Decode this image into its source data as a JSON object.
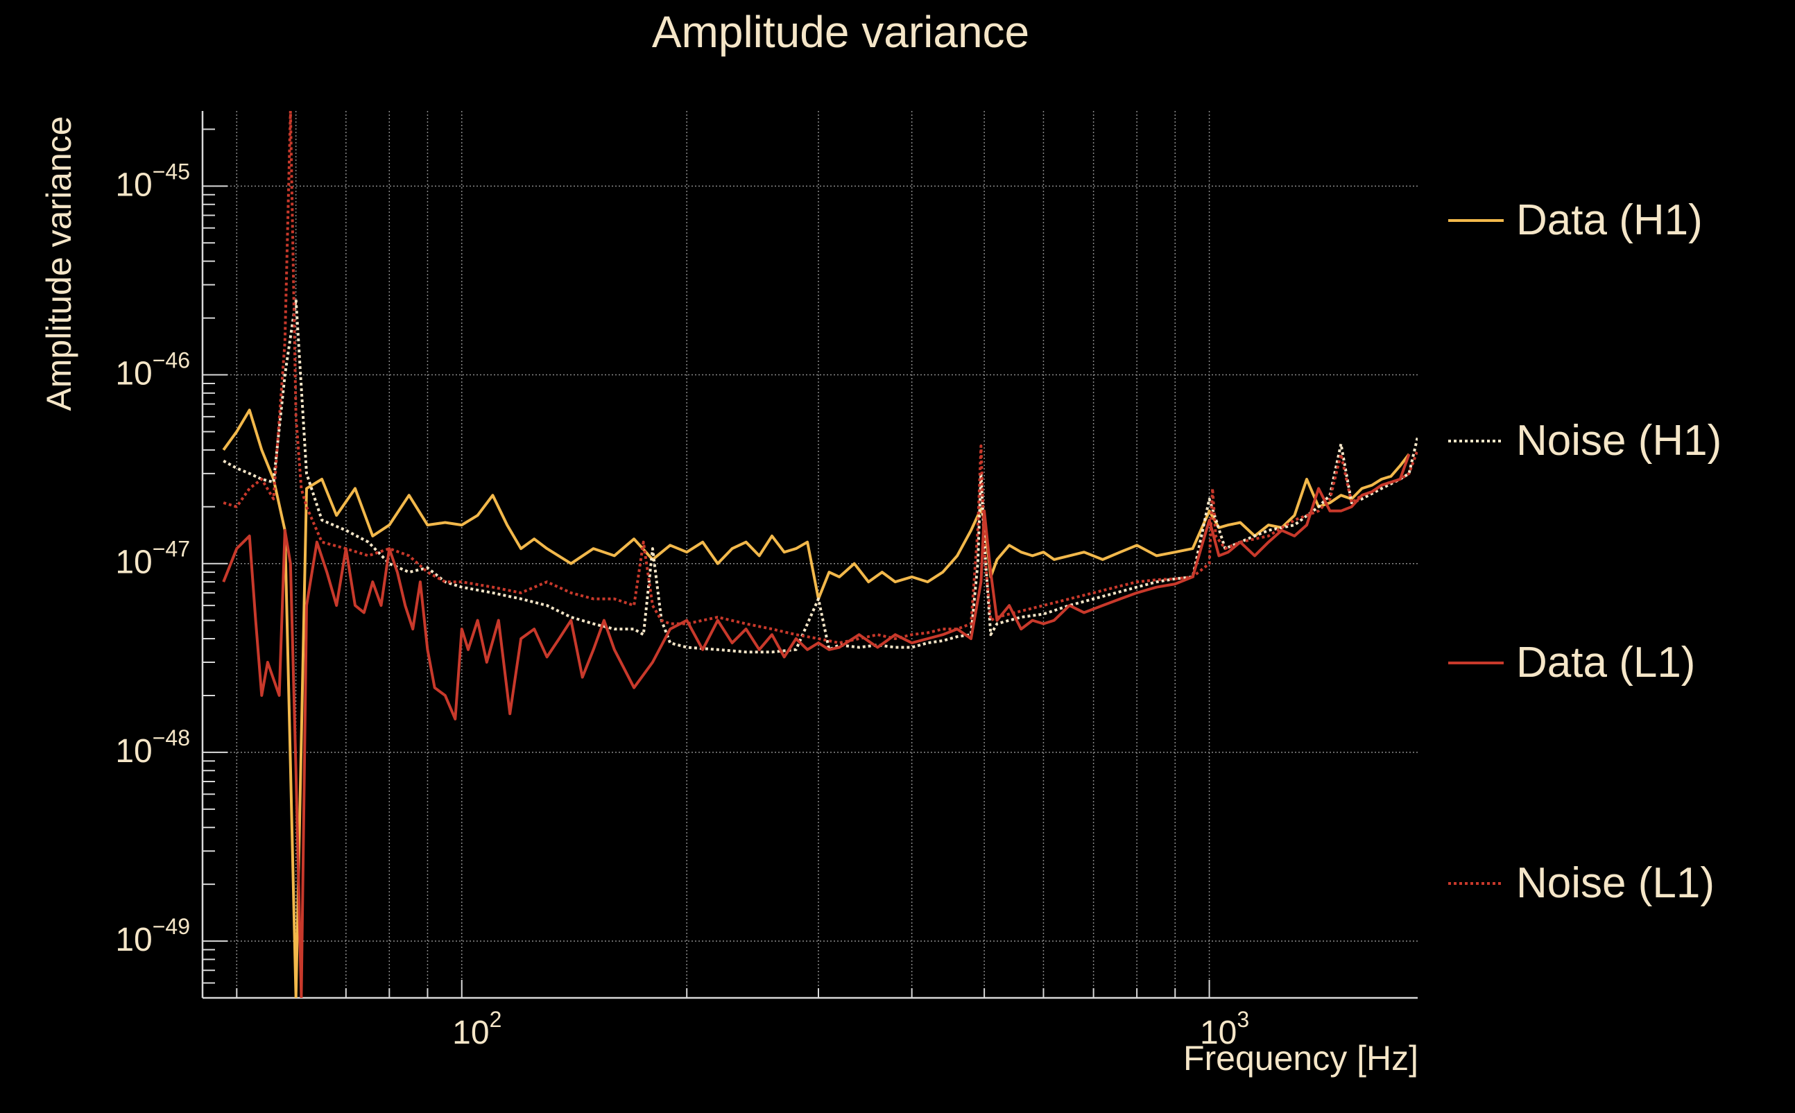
{
  "colors": {
    "background": "#000000",
    "text": "#f5e6c8",
    "axis": "#d9d9d9",
    "grid": "#8a8a8a",
    "h1": "#f2b84b",
    "l1": "#c8392b"
  },
  "chart_data": {
    "type": "line",
    "title": "Amplitude variance",
    "xlabel": "Frequency [Hz]",
    "ylabel": "Amplitude variance",
    "xscale": "log",
    "yscale": "log",
    "xlim": [
      45,
      1900
    ],
    "ylim": [
      5e-50,
      2.5e-45
    ],
    "grid": true,
    "legend_position": "right",
    "x_ticks": [
      {
        "value": 100,
        "base": "10",
        "exp": "2"
      },
      {
        "value": 1000,
        "base": "10",
        "exp": "3"
      }
    ],
    "y_ticks": [
      {
        "value": 1e-45,
        "base": "10",
        "exp": "−45"
      },
      {
        "value": 1e-46,
        "base": "10",
        "exp": "−46"
      },
      {
        "value": 1e-47,
        "base": "10",
        "exp": "−47"
      },
      {
        "value": 1e-48,
        "base": "10",
        "exp": "−48"
      },
      {
        "value": 1e-49,
        "base": "10",
        "exp": "−49"
      }
    ],
    "series": [
      {
        "name": "Data (H1)",
        "color": "#f2b84b",
        "dash": "solid",
        "x": [
          48,
          50,
          52,
          54,
          56,
          58,
          60,
          62,
          65,
          68,
          72,
          76,
          80,
          85,
          90,
          95,
          100,
          105,
          110,
          115,
          120,
          125,
          130,
          140,
          150,
          160,
          170,
          180,
          190,
          200,
          210,
          220,
          230,
          240,
          250,
          260,
          270,
          280,
          290,
          300,
          310,
          320,
          335,
          350,
          365,
          380,
          400,
          420,
          440,
          460,
          480,
          495,
          500,
          510,
          520,
          540,
          560,
          580,
          600,
          620,
          650,
          680,
          720,
          760,
          800,
          850,
          900,
          950,
          1000,
          1030,
          1060,
          1100,
          1150,
          1200,
          1250,
          1300,
          1350,
          1400,
          1450,
          1500,
          1550,
          1600,
          1650,
          1700,
          1750,
          1800,
          1850
        ],
        "y": [
          4e-47,
          5e-47,
          6.5e-47,
          4e-47,
          2.8e-47,
          1.5e-47,
          5e-50,
          2.5e-47,
          2.8e-47,
          1.8e-47,
          2.5e-47,
          1.4e-47,
          1.6e-47,
          2.3e-47,
          1.6e-47,
          1.65e-47,
          1.6e-47,
          1.8e-47,
          2.3e-47,
          1.6e-47,
          1.2e-47,
          1.35e-47,
          1.2e-47,
          1e-47,
          1.2e-47,
          1.1e-47,
          1.35e-47,
          1.05e-47,
          1.25e-47,
          1.15e-47,
          1.3e-47,
          1e-47,
          1.2e-47,
          1.3e-47,
          1.1e-47,
          1.4e-47,
          1.15e-47,
          1.2e-47,
          1.3e-47,
          6.5e-48,
          9e-48,
          8.5e-48,
          1e-47,
          8e-48,
          9e-48,
          8e-48,
          8.5e-48,
          8e-48,
          9e-48,
          1.1e-47,
          1.5e-47,
          1.95e-47,
          1.7e-47,
          8.5e-48,
          1.05e-47,
          1.25e-47,
          1.15e-47,
          1.1e-47,
          1.15e-47,
          1.05e-47,
          1.1e-47,
          1.15e-47,
          1.05e-47,
          1.15e-47,
          1.25e-47,
          1.1e-47,
          1.15e-47,
          1.2e-47,
          1.9e-47,
          1.55e-47,
          1.6e-47,
          1.65e-47,
          1.4e-47,
          1.6e-47,
          1.55e-47,
          1.8e-47,
          2.8e-47,
          2e-47,
          2.1e-47,
          2.3e-47,
          2.2e-47,
          2.5e-47,
          2.6e-47,
          2.8e-47,
          2.9e-47,
          3.3e-47,
          3.8e-47
        ]
      },
      {
        "name": "Noise (H1)",
        "color": "#f5e6c8",
        "dash": "dotted",
        "x": [
          48,
          50,
          52,
          54,
          56,
          58,
          60,
          62,
          65,
          70,
          75,
          80,
          85,
          90,
          95,
          100,
          110,
          120,
          130,
          140,
          150,
          160,
          170,
          175,
          180,
          185,
          190,
          200,
          220,
          240,
          260,
          280,
          300,
          310,
          320,
          340,
          360,
          380,
          400,
          420,
          440,
          460,
          480,
          490,
          495,
          500,
          510,
          520,
          540,
          560,
          600,
          650,
          700,
          750,
          800,
          850,
          900,
          950,
          1000,
          1050,
          1100,
          1150,
          1200,
          1300,
          1400,
          1450,
          1500,
          1550,
          1600,
          1700,
          1800,
          1850,
          1900
        ],
        "y": [
          3.5e-47,
          3.2e-47,
          3e-47,
          2.8e-47,
          2.7e-47,
          1e-46,
          2.5e-46,
          3e-47,
          1.7e-47,
          1.5e-47,
          1.3e-47,
          1e-47,
          9e-48,
          9.5e-48,
          8e-48,
          7.5e-48,
          7e-48,
          6.5e-48,
          6e-48,
          5.2e-48,
          4.8e-48,
          4.5e-48,
          4.5e-48,
          4.2e-48,
          1.2e-47,
          5e-48,
          3.8e-48,
          3.6e-48,
          3.5e-48,
          3.4e-48,
          3.4e-48,
          3.5e-48,
          6.5e-48,
          3.5e-48,
          3.7e-48,
          3.6e-48,
          3.7e-48,
          3.6e-48,
          3.6e-48,
          3.8e-48,
          3.9e-48,
          4.1e-48,
          4.2e-48,
          1e-47,
          3e-47,
          1.3e-47,
          4.2e-48,
          4.8e-48,
          5e-48,
          5.2e-48,
          5.4e-48,
          6e-48,
          6.5e-48,
          7e-48,
          7.5e-48,
          8e-48,
          8.3e-48,
          8.5e-48,
          2.2e-47,
          1.2e-47,
          1.3e-47,
          1.4e-47,
          1.5e-47,
          1.6e-47,
          2e-47,
          2.3e-47,
          4.3e-47,
          2.1e-47,
          2.2e-47,
          2.5e-47,
          2.8e-47,
          3e-47,
          4.7e-47
        ]
      },
      {
        "name": "Data (L1)",
        "color": "#c8392b",
        "dash": "solid",
        "x": [
          48,
          50,
          52,
          53,
          54,
          55,
          57,
          58,
          59,
          60,
          61,
          62,
          64,
          66,
          68,
          70,
          72,
          74,
          76,
          78,
          80,
          82,
          84,
          86,
          88,
          90,
          92,
          95,
          98,
          100,
          102,
          105,
          108,
          112,
          116,
          120,
          125,
          130,
          135,
          140,
          145,
          150,
          155,
          160,
          170,
          180,
          190,
          200,
          210,
          220,
          230,
          240,
          250,
          260,
          270,
          280,
          290,
          300,
          310,
          320,
          340,
          360,
          380,
          400,
          420,
          440,
          460,
          480,
          495,
          500,
          510,
          520,
          540,
          560,
          580,
          600,
          620,
          650,
          680,
          720,
          760,
          800,
          850,
          900,
          950,
          1000,
          1030,
          1060,
          1100,
          1150,
          1200,
          1250,
          1300,
          1350,
          1400,
          1450,
          1500,
          1550,
          1600,
          1650,
          1700,
          1750,
          1800,
          1850
        ],
        "y": [
          8e-48,
          1.2e-47,
          1.4e-47,
          5e-48,
          2e-48,
          3e-48,
          2e-48,
          1.5e-47,
          1e-47,
          8e-49,
          5e-50,
          6e-48,
          1.3e-47,
          9e-48,
          6e-48,
          1.2e-47,
          6e-48,
          5.5e-48,
          8e-48,
          6e-48,
          1.2e-47,
          9e-48,
          6e-48,
          4.5e-48,
          8e-48,
          3.5e-48,
          2.2e-48,
          2e-48,
          1.5e-48,
          4.5e-48,
          3.5e-48,
          5e-48,
          3e-48,
          5e-48,
          1.6e-48,
          4e-48,
          4.5e-48,
          3.2e-48,
          4e-48,
          5e-48,
          2.5e-48,
          3.5e-48,
          5e-48,
          3.5e-48,
          2.2e-48,
          3e-48,
          4.5e-48,
          5e-48,
          3.5e-48,
          5e-48,
          3.8e-48,
          4.5e-48,
          3.5e-48,
          4.2e-48,
          3.2e-48,
          4e-48,
          3.5e-48,
          3.8e-48,
          3.5e-48,
          3.6e-48,
          4.2e-48,
          3.6e-48,
          4.2e-48,
          3.8e-48,
          4e-48,
          4.2e-48,
          4.5e-48,
          4e-48,
          8e-48,
          1.9e-47,
          9e-48,
          5e-48,
          6e-48,
          4.5e-48,
          5e-48,
          4.8e-48,
          5e-48,
          6e-48,
          5.5e-48,
          6e-48,
          6.5e-48,
          7e-48,
          7.5e-48,
          7.8e-48,
          8.5e-48,
          1.7e-47,
          1.1e-47,
          1.15e-47,
          1.3e-47,
          1.1e-47,
          1.3e-47,
          1.5e-47,
          1.4e-47,
          1.6e-47,
          2.5e-47,
          1.9e-47,
          1.9e-47,
          2e-47,
          2.3e-47,
          2.4e-47,
          2.6e-47,
          2.7e-47,
          2.8e-47,
          3.8e-47
        ]
      },
      {
        "name": "Noise (L1)",
        "color": "#c8392b",
        "dash": "dotted",
        "x": [
          48,
          50,
          52,
          54,
          56,
          58,
          59,
          60,
          61,
          62,
          65,
          70,
          75,
          80,
          85,
          90,
          95,
          100,
          110,
          120,
          130,
          140,
          150,
          160,
          170,
          175,
          180,
          185,
          190,
          200,
          220,
          240,
          260,
          280,
          300,
          320,
          340,
          360,
          380,
          400,
          420,
          440,
          460,
          480,
          490,
          495,
          500,
          510,
          520,
          540,
          560,
          600,
          650,
          700,
          750,
          800,
          850,
          900,
          950,
          1000,
          1010,
          1020,
          1050,
          1100,
          1150,
          1200,
          1300,
          1400,
          1450,
          1500,
          1550,
          1600,
          1650,
          1700,
          1800,
          1850,
          1900
        ],
        "y": [
          2.1e-47,
          2e-47,
          2.5e-47,
          2.8e-47,
          2.2e-47,
          1.5e-46,
          2.5e-45,
          6e-47,
          2.5e-47,
          2e-47,
          1.3e-47,
          1.2e-47,
          1.1e-47,
          1.2e-47,
          1.1e-47,
          9e-48,
          8e-48,
          8e-48,
          7.5e-48,
          7e-48,
          8e-48,
          7e-48,
          6.5e-48,
          6.5e-48,
          6e-48,
          1.3e-47,
          6e-48,
          5e-48,
          4.8e-48,
          4.8e-48,
          5.2e-48,
          4.8e-48,
          4.5e-48,
          4.2e-48,
          4e-48,
          3.8e-48,
          4e-48,
          4.2e-48,
          4e-48,
          4.2e-48,
          4.3e-48,
          4.5e-48,
          4.5e-48,
          4.8e-48,
          1.5e-47,
          4.2e-47,
          1.2e-47,
          5e-48,
          5.2e-48,
          5.4e-48,
          5.6e-48,
          6e-48,
          6.5e-48,
          7e-48,
          7.5e-48,
          8e-48,
          8.2e-48,
          8.3e-48,
          8.5e-48,
          1e-47,
          2.5e-47,
          1.4e-47,
          1.2e-47,
          1.3e-47,
          1.35e-47,
          1.4e-47,
          1.7e-47,
          1.9e-47,
          2.2e-47,
          3.8e-47,
          2.1e-47,
          2.3e-47,
          2.4e-47,
          2.6e-47,
          2.8e-47,
          3e-47,
          4e-47
        ]
      }
    ]
  }
}
